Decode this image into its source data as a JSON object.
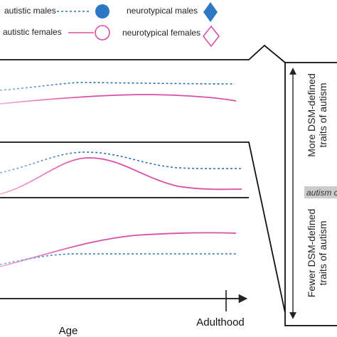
{
  "legend": {
    "autistic_males": "autistic males",
    "neurotypical_males": "neurotypical males",
    "autistic_females": "autistic females",
    "neurotypical_females": "neurotypical females"
  },
  "axis": {
    "x_label": "Age",
    "end_label": "Adulthood"
  },
  "side_panel": {
    "top_text": [
      "More DSM-defined",
      "traits of autism"
    ],
    "middle_label": "autism c",
    "bottom_text": [
      "Fewer DSM-defined",
      "traits of autism"
    ]
  }
}
